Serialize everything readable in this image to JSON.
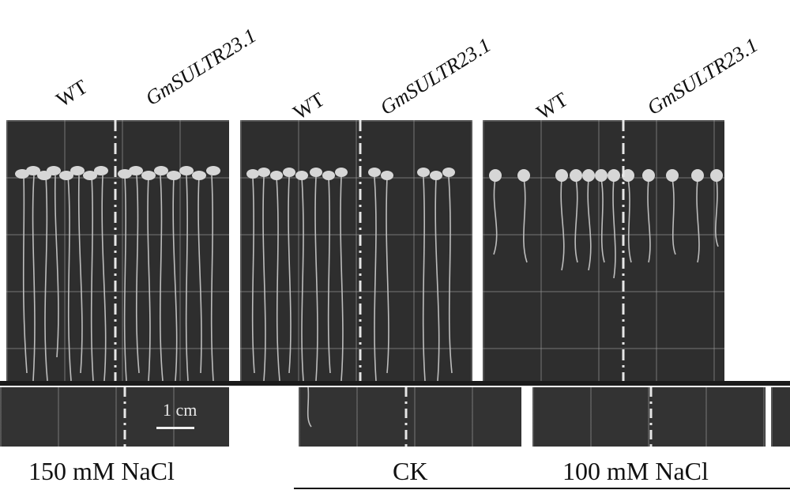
{
  "genotype_labels": {
    "wt": "WT",
    "transgenic": "GmSULTR23.1"
  },
  "condition_labels": {
    "left": "150 mM NaCl",
    "middle": "CK",
    "right": "100 mM NaCl"
  },
  "scale_bar": {
    "label": "1 cm"
  },
  "colors": {
    "plate_background": "#2e2e2e",
    "seedling": "#cfcfcf",
    "divider": "#e6e6e6",
    "text": "#111111"
  }
}
